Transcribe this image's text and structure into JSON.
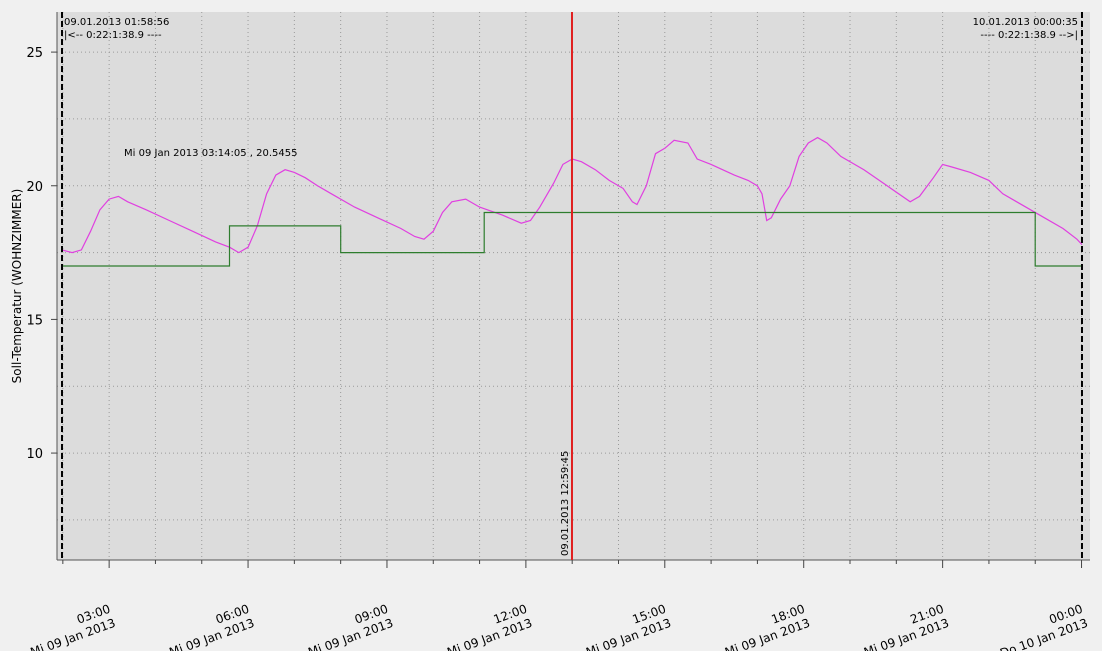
{
  "chart_data": {
    "type": "line",
    "ylabel": "Soll-Temperatur (WOHNZIMMER)",
    "ylim": [
      6,
      26.5
    ],
    "yticks": [
      10,
      15,
      20,
      25
    ],
    "x_range": [
      "09.01.2013 01:58:56",
      "10.01.2013 00:00:35"
    ],
    "x_ticks": [
      {
        "time": "03:00",
        "date": "Mi 09 Jan 2013",
        "hour": 3
      },
      {
        "time": "06:00",
        "date": "Mi 09 Jan 2013",
        "hour": 6
      },
      {
        "time": "09:00",
        "date": "Mi 09 Jan 2013",
        "hour": 9
      },
      {
        "time": "12:00",
        "date": "Mi 09 Jan 2013",
        "hour": 12
      },
      {
        "time": "15:00",
        "date": "Mi 09 Jan 2013",
        "hour": 15
      },
      {
        "time": "18:00",
        "date": "Mi 09 Jan 2013",
        "hour": 18
      },
      {
        "time": "21:00",
        "date": "Mi 09 Jan 2013",
        "hour": 21
      },
      {
        "time": "00:00",
        "date": "Do 10 Jan 2013",
        "hour": 24
      }
    ],
    "grid": true,
    "series": [
      {
        "color": "#e040e0",
        "points": [
          [
            "09.01.2013 01:58:56",
            17.6
          ],
          [
            "09.01.2013 02:12",
            17.5
          ],
          [
            "09.01.2013 02:24",
            17.6
          ],
          [
            "09.01.2013 02:36",
            18.3
          ],
          [
            "09.01.2013 02:48",
            19.1
          ],
          [
            "09.01.2013 03:00",
            19.5
          ],
          [
            "09.01.2013 03:12",
            19.6
          ],
          [
            "09.01.2013 03:24",
            19.4
          ],
          [
            "09.01.2013 03:48",
            19.1
          ],
          [
            "09.01.2013 04:18",
            18.7
          ],
          [
            "09.01.2013 04:48",
            18.3
          ],
          [
            "09.01.2013 05:18",
            17.9
          ],
          [
            "09.01.2013 05:36",
            17.7
          ],
          [
            "09.01.2013 05:48",
            17.5
          ],
          [
            "09.01.2013 06:00",
            17.7
          ],
          [
            "09.01.2013 06:12",
            18.5
          ],
          [
            "09.01.2013 06:24",
            19.7
          ],
          [
            "09.01.2013 06:36",
            20.4
          ],
          [
            "09.01.2013 06:48",
            20.6
          ],
          [
            "09.01.2013 07:00",
            20.5
          ],
          [
            "09.01.2013 07:14",
            20.3
          ],
          [
            "09.01.2013 07:30",
            20.0
          ],
          [
            "09.01.2013 07:48",
            19.7
          ],
          [
            "09.01.2013 08:18",
            19.2
          ],
          [
            "09.01.2013 08:48",
            18.8
          ],
          [
            "09.01.2013 09:18",
            18.4
          ],
          [
            "09.01.2013 09:36",
            18.1
          ],
          [
            "09.01.2013 09:48",
            18.0
          ],
          [
            "09.01.2013 10:00",
            18.3
          ],
          [
            "09.01.2013 10:12",
            19.0
          ],
          [
            "09.01.2013 10:24",
            19.4
          ],
          [
            "09.01.2013 10:42",
            19.5
          ],
          [
            "09.01.2013 11:00",
            19.2
          ],
          [
            "09.01.2013 11:30",
            18.9
          ],
          [
            "09.01.2013 11:54",
            18.6
          ],
          [
            "09.01.2013 12:06",
            18.7
          ],
          [
            "09.01.2013 12:18",
            19.2
          ],
          [
            "09.01.2013 12:36",
            20.1
          ],
          [
            "09.01.2013 12:48",
            20.8
          ],
          [
            "09.01.2013 13:00",
            21.0
          ],
          [
            "09.01.2013 13:12",
            20.9
          ],
          [
            "09.01.2013 13:30",
            20.6
          ],
          [
            "09.01.2013 13:48",
            20.2
          ],
          [
            "09.01.2013 14:06",
            19.9
          ],
          [
            "09.01.2013 14:18",
            19.4
          ],
          [
            "09.01.2013 14:24",
            19.3
          ],
          [
            "09.01.2013 14:36",
            20.0
          ],
          [
            "09.01.2013 14:48",
            21.2
          ],
          [
            "09.01.2013 15:00",
            21.4
          ],
          [
            "09.01.2013 15:12",
            21.7
          ],
          [
            "09.01.2013 15:30",
            21.6
          ],
          [
            "09.01.2013 15:42",
            21.0
          ],
          [
            "09.01.2013 16:00",
            20.8
          ],
          [
            "09.01.2013 16:30",
            20.4
          ],
          [
            "09.01.2013 16:48",
            20.2
          ],
          [
            "09.01.2013 17:00",
            20.0
          ],
          [
            "09.01.2013 17:06",
            19.7
          ],
          [
            "09.01.2013 17:12",
            18.7
          ],
          [
            "09.01.2013 17:18",
            18.8
          ],
          [
            "09.01.2013 17:30",
            19.5
          ],
          [
            "09.01.2013 17:42",
            20.0
          ],
          [
            "09.01.2013 17:54",
            21.1
          ],
          [
            "09.01.2013 18:06",
            21.6
          ],
          [
            "09.01.2013 18:18",
            21.8
          ],
          [
            "09.01.2013 18:30",
            21.6
          ],
          [
            "09.01.2013 18:48",
            21.1
          ],
          [
            "09.01.2013 19:18",
            20.6
          ],
          [
            "09.01.2013 19:48",
            20.0
          ],
          [
            "09.01.2013 20:18",
            19.4
          ],
          [
            "09.01.2013 20:30",
            19.6
          ],
          [
            "09.01.2013 20:48",
            20.3
          ],
          [
            "09.01.2013 21:00",
            20.8
          ],
          [
            "09.01.2013 21:12",
            20.7
          ],
          [
            "09.01.2013 21:36",
            20.5
          ],
          [
            "09.01.2013 22:00",
            20.2
          ],
          [
            "09.01.2013 22:18",
            19.7
          ],
          [
            "09.01.2013 22:36",
            19.4
          ],
          [
            "09.01.2013 23:06",
            18.9
          ],
          [
            "09.01.2013 23:36",
            18.4
          ],
          [
            "09.01.2013 23:54",
            18.0
          ],
          [
            "10.01.2013 00:00:35",
            17.8
          ]
        ]
      },
      {
        "color": "#2e7d2e",
        "step": true,
        "points": [
          [
            "09.01.2013 01:58:56",
            17.0
          ],
          [
            "09.01.2013 05:36",
            17.0
          ],
          [
            "09.01.2013 05:36",
            18.5
          ],
          [
            "09.01.2013 08:00",
            18.5
          ],
          [
            "09.01.2013 08:00",
            17.5
          ],
          [
            "09.01.2013 11:06",
            17.5
          ],
          [
            "09.01.2013 11:06",
            19.0
          ],
          [
            "09.01.2013 23:00",
            19.0
          ],
          [
            "09.01.2013 23:00",
            17.0
          ],
          [
            "10.01.2013 00:00:35",
            17.0
          ]
        ]
      }
    ],
    "cursor": {
      "label": "09.01.2013 12:59:45",
      "time": "09.01.2013 12:59:45",
      "color": "#e02020"
    },
    "point_annotation": {
      "text": "Mi 09 Jan 2013 03:14:05 , 20.5455"
    },
    "left_bound": {
      "line1": "09.01.2013 01:58:56",
      "line2": "|<-- 0:22:1:38.9 ----"
    },
    "right_bound": {
      "line1": "10.01.2013 00:00:35",
      "line2": "---- 0:22:1:38.9 -->|"
    }
  }
}
